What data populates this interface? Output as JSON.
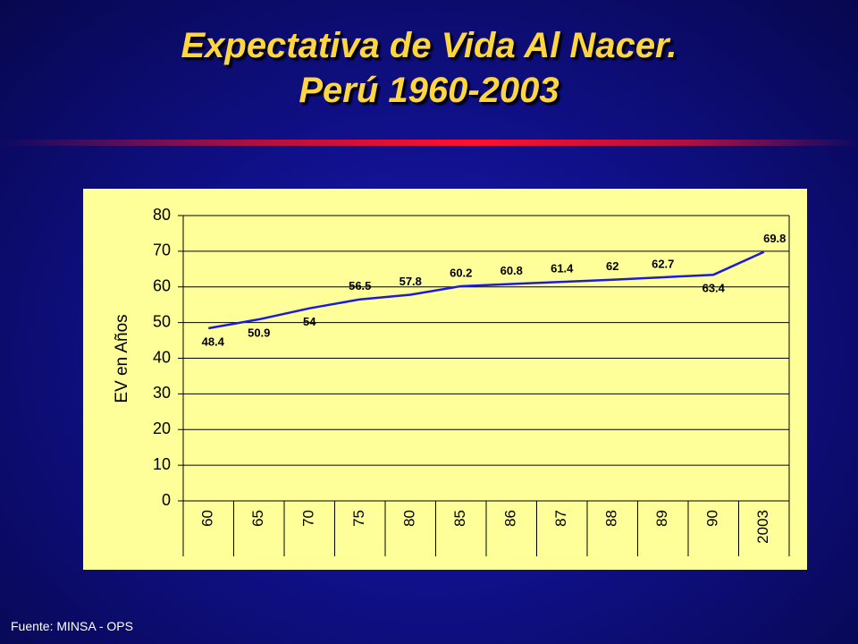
{
  "slide": {
    "title_line1": "Expectativa de Vida Al Nacer.",
    "title_line2": "Perú 1960-2003",
    "source": "Fuente: MINSA - OPS"
  },
  "colors": {
    "title": "#ffd640",
    "plot_background": "#ffff99",
    "line": "#1a1ae0",
    "grid": "#000000"
  },
  "chart_data": {
    "type": "line",
    "categories": [
      "60",
      "65",
      "70",
      "75",
      "80",
      "85",
      "86",
      "87",
      "88",
      "89",
      "90",
      "2003"
    ],
    "values": [
      48.4,
      50.9,
      54,
      56.5,
      57.8,
      60.2,
      60.8,
      61.4,
      62,
      62.7,
      63.4,
      69.8
    ],
    "data_labels": [
      "48.4",
      "50.9",
      "54",
      "56.5",
      "57.8",
      "60.2",
      "60.8",
      "61.4",
      "62",
      "62.7",
      "63.4",
      "69.8"
    ],
    "ylabel": "EV en Años",
    "ylim": [
      0,
      80
    ],
    "yticks": [
      "0",
      "10",
      "20",
      "30",
      "40",
      "50",
      "60",
      "70",
      "80"
    ],
    "grid": true,
    "x_tick_orientation": "vertical"
  }
}
